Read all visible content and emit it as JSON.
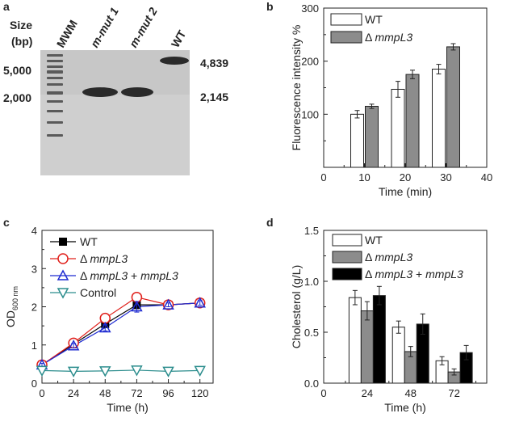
{
  "panels": {
    "a": {
      "letter": "a",
      "size_label": "Size",
      "bp_label": "(bp)",
      "lanes": [
        {
          "label": "MWM",
          "italic": false
        },
        {
          "label": "m-mut 1",
          "italic": true
        },
        {
          "label": "m-mut 2",
          "italic": true
        },
        {
          "label": "WT",
          "italic": false
        }
      ],
      "ladder_markers": [
        "5,000",
        "2,000"
      ],
      "band_sizes": [
        "4,839",
        "2,145"
      ],
      "colors": {
        "gel": "#cfcfcf",
        "band": "#2a2a2a"
      }
    }
  },
  "chart_data": [
    {
      "panel": "b",
      "type": "bar",
      "title": "",
      "xlabel": "Time (min)",
      "ylabel": "Fluorescence intensity %",
      "xlim": [
        0,
        40
      ],
      "ylim": [
        0,
        300
      ],
      "xticks": [
        "0",
        "10",
        "20",
        "30",
        "40"
      ],
      "yticks": [
        "100",
        "200",
        "300"
      ],
      "x": [
        10,
        20,
        30
      ],
      "legend_position": "top-left",
      "series": [
        {
          "name": "WT",
          "prefix": "",
          "italic": "",
          "color": "#ffffff",
          "values": [
            100,
            147,
            185
          ],
          "errors": [
            7,
            15,
            9
          ]
        },
        {
          "name": "Δ mmpL3",
          "prefix": "Δ ",
          "italic": "mmpL3",
          "color": "#8c8c8c",
          "values": [
            115,
            175,
            227
          ],
          "errors": [
            4,
            8,
            6
          ]
        }
      ]
    },
    {
      "panel": "c",
      "type": "line",
      "title": "",
      "xlabel": "Time (h)",
      "ylabel_main": "OD",
      "ylabel_sub": "600 nm",
      "xlim": [
        0,
        130
      ],
      "ylim": [
        0,
        4
      ],
      "xticks": [
        "0",
        "24",
        "48",
        "72",
        "96",
        "120"
      ],
      "yticks": [
        "0",
        "1",
        "2",
        "3",
        "4"
      ],
      "legend_position": "top-left",
      "series": [
        {
          "name": "WT",
          "prefix": "",
          "italic": "",
          "suffix": "",
          "color": "#000000",
          "marker": "square-filled",
          "x": [
            0,
            24,
            48,
            72,
            96,
            120
          ],
          "values": [
            0.48,
            1.02,
            1.55,
            2.05,
            2.05,
            2.1
          ],
          "errors": [
            0.04,
            0.06,
            0.08,
            0.1,
            0.05,
            0.06
          ]
        },
        {
          "name": "Δ mmpL3",
          "prefix": "Δ ",
          "italic": "mmpL3",
          "suffix": "",
          "color": "#e0201b",
          "marker": "circle-open",
          "x": [
            0,
            24,
            48,
            72,
            96,
            120
          ],
          "values": [
            0.48,
            1.05,
            1.7,
            2.25,
            2.05,
            2.1
          ],
          "errors": [
            0.04,
            0.05,
            0.07,
            0.1,
            0.06,
            0.05
          ]
        },
        {
          "name": "Δ mmpL3 + mmpL3",
          "prefix": "Δ ",
          "italic": "mmpL3",
          "suffix": " + mmpL3",
          "color": "#1f2bd1",
          "marker": "triangle-up-open",
          "x": [
            0,
            24,
            48,
            72,
            96,
            120
          ],
          "values": [
            0.48,
            0.98,
            1.45,
            2.0,
            2.05,
            2.1
          ],
          "errors": [
            0.04,
            0.06,
            0.08,
            0.14,
            0.05,
            0.06
          ]
        },
        {
          "name": "Control",
          "prefix": "",
          "italic": "",
          "suffix": "",
          "color": "#2c8d8d",
          "marker": "triangle-down-open",
          "x": [
            0,
            24,
            48,
            72,
            96,
            120
          ],
          "values": [
            0.33,
            0.31,
            0.32,
            0.34,
            0.31,
            0.33
          ],
          "errors": [
            0.02,
            0.02,
            0.02,
            0.02,
            0.02,
            0.02
          ]
        }
      ]
    },
    {
      "panel": "d",
      "type": "bar",
      "title": "",
      "xlabel": "Time (h)",
      "ylabel": "Cholesterol (g/L)",
      "xlim": [
        0,
        90
      ],
      "ylim": [
        0,
        1.5
      ],
      "xticks": [
        "0",
        "24",
        "48",
        "72"
      ],
      "yticks": [
        "0.0",
        "0.5",
        "1.0",
        "1.5"
      ],
      "x": [
        24,
        48,
        72
      ],
      "legend_position": "top-left",
      "series": [
        {
          "name": "WT",
          "prefix": "",
          "italic": "",
          "suffix": "",
          "color": "#ffffff",
          "values": [
            0.84,
            0.55,
            0.22
          ],
          "errors": [
            0.07,
            0.06,
            0.04
          ]
        },
        {
          "name": "Δ mmpL3",
          "prefix": "Δ ",
          "italic": "mmpL3",
          "suffix": "",
          "color": "#8c8c8c",
          "values": [
            0.71,
            0.31,
            0.11
          ],
          "errors": [
            0.09,
            0.05,
            0.03
          ]
        },
        {
          "name": "Δ mmpL3 + mmpL3",
          "prefix": "Δ ",
          "italic": "mmpL3",
          "suffix": " + mmpL3",
          "color": "#000000",
          "values": [
            0.86,
            0.58,
            0.3
          ],
          "errors": [
            0.09,
            0.1,
            0.07
          ]
        }
      ]
    }
  ]
}
